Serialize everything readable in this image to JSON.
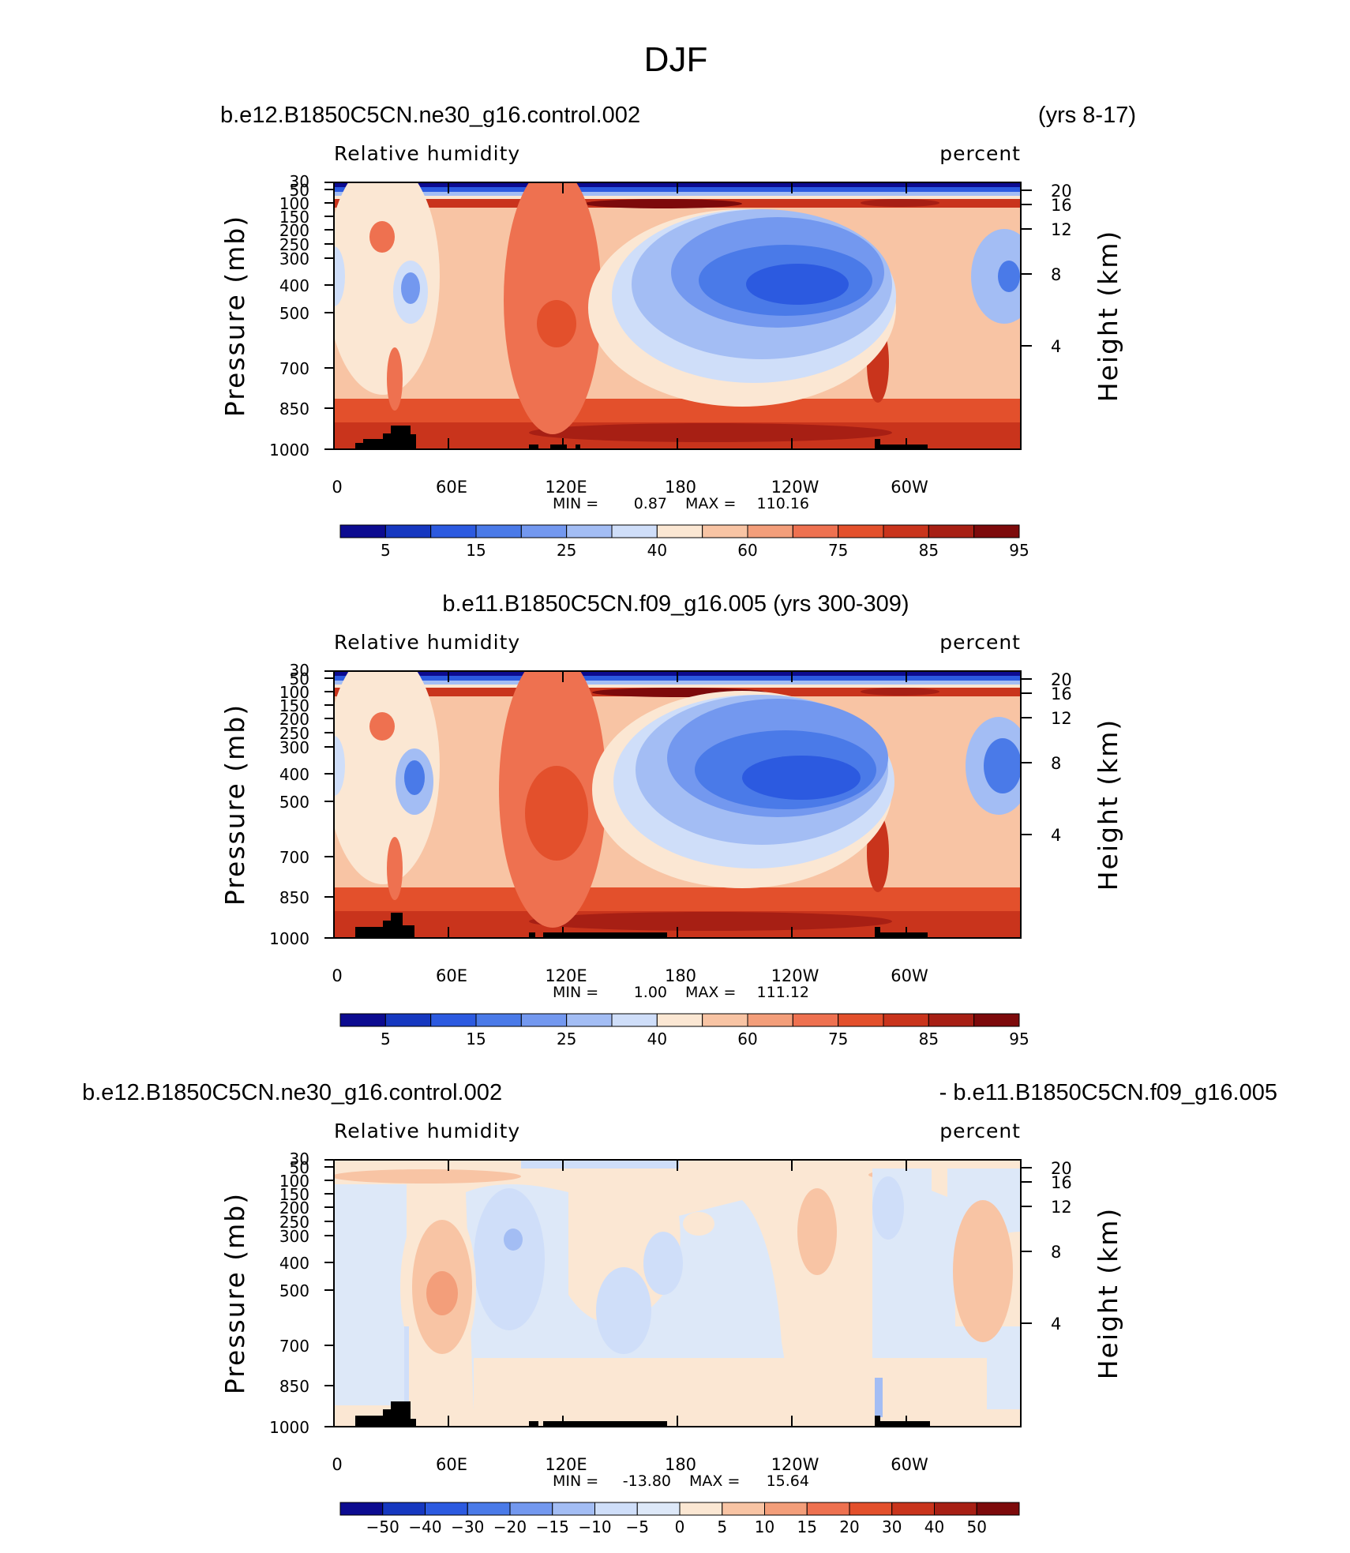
{
  "page_title": "DJF",
  "chart_data": [
    {
      "type": "heatmap",
      "case_left": "b.e12.B1850C5CN.ne30_g16.control.002",
      "case_right": "(yrs 8-17)",
      "variable": "Relative humidity",
      "units": "percent",
      "ylabel": "Pressure (mb)",
      "ylabel_right": "Height (km)",
      "x_ticks": [
        "0",
        "60E",
        "120E",
        "180",
        "120W",
        "60W"
      ],
      "y_ticks": [
        "1000",
        "850",
        "700",
        "500",
        "400",
        "300",
        "250",
        "200",
        "150",
        "100",
        "50",
        "30"
      ],
      "height_ticks": [
        "20",
        "16",
        "12",
        "8",
        "4"
      ],
      "min_label": "MIN =",
      "min_value": "0.87",
      "max_label": "MAX =",
      "max_value": "110.16",
      "colorbar_labels": [
        "5",
        "15",
        "25",
        "40",
        "60",
        "75",
        "85",
        "95"
      ],
      "colorbar_colors": [
        "#0c0b90",
        "#1638c0",
        "#2c5ae0",
        "#4a7ae8",
        "#7398ef",
        "#a3bdf4",
        "#cfdef9",
        "#fbe7d3",
        "#f8c4a4",
        "#f39e7a",
        "#ee7150",
        "#e3502c",
        "#c9341c",
        "#a71f14",
        "#7d0a0b"
      ]
    },
    {
      "type": "heatmap",
      "case_left": "b.e11.B1850C5CN.f09_g16.005 (yrs 300-309)",
      "variable": "Relative humidity",
      "units": "percent",
      "ylabel": "Pressure (mb)",
      "ylabel_right": "Height (km)",
      "x_ticks": [
        "0",
        "60E",
        "120E",
        "180",
        "120W",
        "60W"
      ],
      "y_ticks": [
        "1000",
        "850",
        "700",
        "500",
        "400",
        "300",
        "250",
        "200",
        "150",
        "100",
        "50",
        "30"
      ],
      "height_ticks": [
        "20",
        "16",
        "12",
        "8",
        "4"
      ],
      "min_label": "MIN =",
      "min_value": "1.00",
      "max_label": "MAX =",
      "max_value": "111.12",
      "colorbar_labels": [
        "5",
        "15",
        "25",
        "40",
        "60",
        "75",
        "85",
        "95"
      ],
      "colorbar_colors": [
        "#0c0b90",
        "#1638c0",
        "#2c5ae0",
        "#4a7ae8",
        "#7398ef",
        "#a3bdf4",
        "#cfdef9",
        "#fbe7d3",
        "#f8c4a4",
        "#f39e7a",
        "#ee7150",
        "#e3502c",
        "#c9341c",
        "#a71f14",
        "#7d0a0b"
      ]
    },
    {
      "type": "heatmap",
      "case_left": "b.e12.B1850C5CN.ne30_g16.control.002",
      "case_right": "- b.e11.B1850C5CN.f09_g16.005",
      "variable": "Relative humidity",
      "units": "percent",
      "ylabel": "Pressure (mb)",
      "ylabel_right": "Height (km)",
      "x_ticks": [
        "0",
        "60E",
        "120E",
        "180",
        "120W",
        "60W"
      ],
      "y_ticks": [
        "1000",
        "850",
        "700",
        "500",
        "400",
        "300",
        "250",
        "200",
        "150",
        "100",
        "50",
        "30"
      ],
      "height_ticks": [
        "20",
        "16",
        "12",
        "8",
        "4"
      ],
      "min_label": "MIN =",
      "min_value": "-13.80",
      "max_label": "MAX =",
      "max_value": "15.64",
      "colorbar_labels": [
        "−50",
        "−40",
        "−30",
        "−20",
        "−15",
        "−10",
        "−5",
        "0",
        "5",
        "10",
        "15",
        "20",
        "30",
        "40",
        "50"
      ],
      "colorbar_colors": [
        "#0c0b90",
        "#1638c0",
        "#2c5ae0",
        "#4a7ae8",
        "#7398ef",
        "#a3bdf4",
        "#cfdef9",
        "#dde8f8",
        "#fbe7d3",
        "#f8c4a4",
        "#f39e7a",
        "#ee7150",
        "#e3502c",
        "#c9341c",
        "#a71f14",
        "#7d0a0b"
      ]
    }
  ]
}
